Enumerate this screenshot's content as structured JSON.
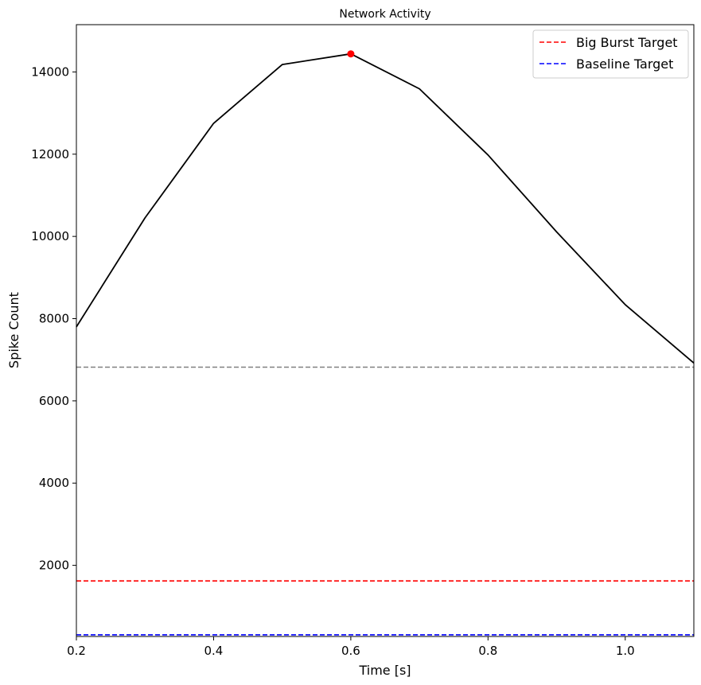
{
  "chart_data": {
    "type": "line",
    "title": "Network Activity",
    "xlabel": "Time [s]",
    "ylabel": "Spike Count",
    "xlim": [
      0.2,
      1.1
    ],
    "ylim": [
      270,
      15150
    ],
    "xticks": [
      0.2,
      0.4,
      0.6,
      0.8,
      1.0
    ],
    "xtick_labels": [
      "0.2",
      "0.4",
      "0.6",
      "0.8",
      "1.0"
    ],
    "yticks": [
      2000,
      4000,
      6000,
      8000,
      10000,
      12000,
      14000
    ],
    "ytick_labels": [
      "2000",
      "4000",
      "6000",
      "8000",
      "10000",
      "12000",
      "14000"
    ],
    "series": [
      {
        "color": "#000000",
        "x": [
          0.2,
          0.3,
          0.4,
          0.5,
          0.6,
          0.7,
          0.8,
          0.9,
          1.0,
          1.1
        ],
        "y": [
          7800,
          10450,
          12750,
          14180,
          14440,
          13590,
          11980,
          10110,
          8340,
          6920
        ]
      }
    ],
    "peak": {
      "x": 0.6,
      "y": 14440,
      "color": "#ff0000"
    },
    "hlines": [
      {
        "y": 6820,
        "color": "#808080",
        "style": "dashed"
      },
      {
        "name": "Big Burst Target",
        "y": 1620,
        "color": "#ff0000",
        "style": "dashed"
      },
      {
        "name": "Baseline Target",
        "y": 310,
        "color": "#0000ff",
        "style": "dashed"
      }
    ],
    "legend": {
      "position": "top-right",
      "entries": [
        {
          "label": "Big Burst Target",
          "color": "#ff0000"
        },
        {
          "label": "Baseline Target",
          "color": "#0000ff"
        }
      ]
    },
    "grid": false
  }
}
